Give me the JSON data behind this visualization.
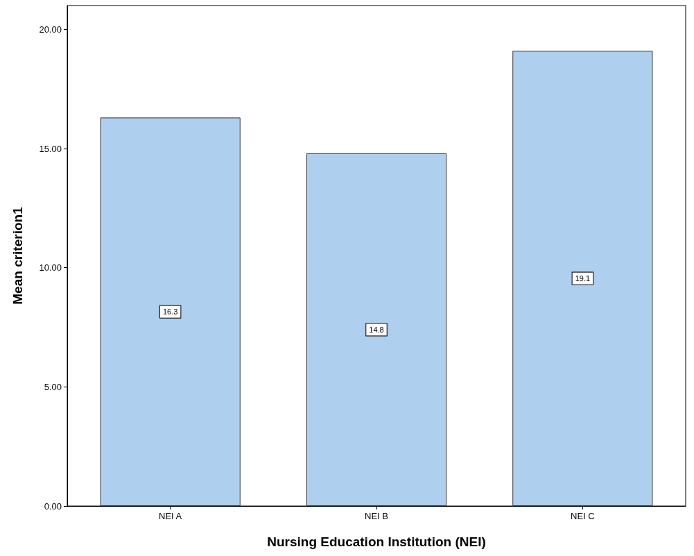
{
  "chart_data": {
    "type": "bar",
    "xlabel": "Nursing Education Institution (NEI)",
    "ylabel": "Mean criterion1",
    "categories": [
      "NEI A",
      "NEI B",
      "NEI C"
    ],
    "values": [
      16.3,
      14.8,
      19.1
    ],
    "color": "#aecfee",
    "ylim": [
      0,
      21
    ],
    "yticks": [
      {
        "value": 0,
        "label": "0.00"
      },
      {
        "value": 5,
        "label": "5.00"
      },
      {
        "value": 10,
        "label": "10.00"
      },
      {
        "value": 15,
        "label": "15.00"
      },
      {
        "value": 20,
        "label": "20.00"
      }
    ],
    "grid": false,
    "data_labels": true
  }
}
